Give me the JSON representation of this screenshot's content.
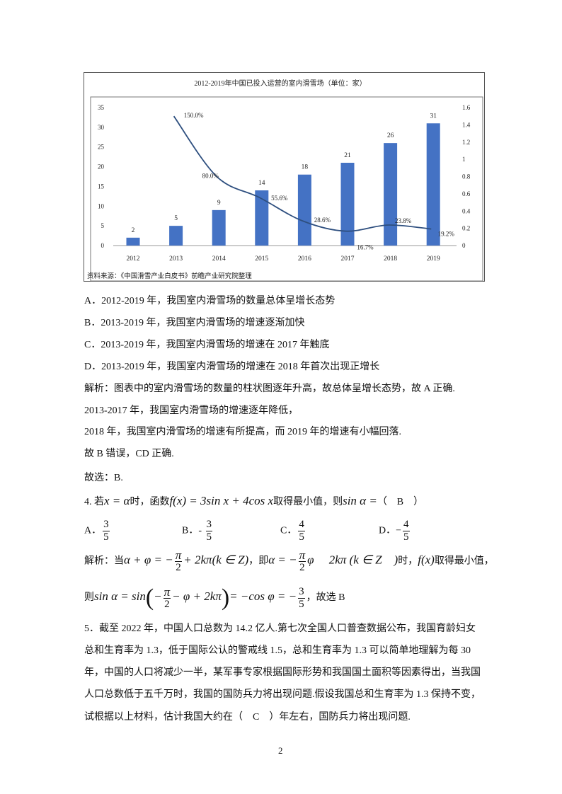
{
  "chart_data": {
    "type": "bar+line",
    "title": "2012-2019年中国已投入运营的室内滑雪场（单位：家）",
    "categories": [
      "2012",
      "2013",
      "2014",
      "2015",
      "2016",
      "2017",
      "2018",
      "2019"
    ],
    "series": [
      {
        "type": "bar",
        "axis": "left",
        "values": [
          2,
          5,
          9,
          14,
          18,
          21,
          26,
          31
        ],
        "labels": [
          "2",
          "5",
          "9",
          "14",
          "18",
          "21",
          "26",
          "31"
        ],
        "color": "#4472c4"
      },
      {
        "type": "line",
        "axis": "right",
        "values": [
          null,
          1.5,
          0.8,
          0.556,
          0.286,
          0.167,
          0.238,
          0.192
        ],
        "labels": [
          "",
          "150.0%",
          "80.0%",
          "55.6%",
          "28.6%",
          "16.7%",
          "23.8%",
          "19.2%"
        ],
        "color": "#2e4f7f"
      }
    ],
    "y_left": {
      "range": [
        0,
        35
      ],
      "ticks": [
        "0",
        "5",
        "10",
        "15",
        "20",
        "25",
        "30",
        "35"
      ]
    },
    "y_right": {
      "range": [
        0,
        1.6
      ],
      "ticks": [
        "0",
        "0.2",
        "0.4",
        "0.6",
        "0.8",
        "1",
        "1.2",
        "1.4",
        "1.6"
      ]
    },
    "grid": false,
    "source": "资料来源：《中国滑雪产业白皮书》前瞻产业研究院整理"
  },
  "q3": {
    "options": [
      "A．2012-2019 年，我国室内滑雪场的数量总体呈增长态势",
      "B．2013-2019 年，我国室内滑雪场的增速逐渐加快",
      "C．2013-2019 年，我国室内滑雪场的增速在 2017 年触底",
      "D．2013-2019 年，我国室内滑雪场的增速在 2018 年首次出现正增长"
    ],
    "analysis": [
      "解析：图表中的室内滑雪场的数量的柱状图逐年升高，故总体呈增长态势，故 A 正确.",
      "2013-2017 年，我国室内滑雪场的增速逐年降低，",
      "2018 年，我国室内滑雪场的增速有所提高，而 2019 年的增速有小幅回落.",
      "故 B 错误，CD 正确.",
      "故选：B."
    ]
  },
  "q4": {
    "stem_pre": "4. 若",
    "x_eq": "x = α",
    "stem_mid": "时，函数",
    "func": "f(x) = 3sin x + 4cos x",
    "stem_post": "取得最小值，则",
    "sin_a": "sin α =",
    "answer": "（　B　）",
    "options": [
      {
        "label": "A．",
        "sign": "",
        "num": "3",
        "den": "5"
      },
      {
        "label": "B．",
        "sign": "- ",
        "num": "3",
        "den": "5"
      },
      {
        "label": "C．",
        "sign": "",
        "num": "4",
        "den": "5"
      },
      {
        "label": "D．",
        "sign": "−",
        "num": "4",
        "den": "5"
      }
    ],
    "a1_pre": "解析：当",
    "a1_m1": "α + φ = −",
    "pi": "π",
    "two": "2",
    "a1_m2": "+ 2kπ(k ∈ Z)",
    "a1_mid": "，即",
    "a1_m3": "α = −",
    "a1_m4": "φ　 2kπ (k ∈ Z　)",
    "a1_post1": "时，",
    "fx": "f(x)",
    "a1_post2": "取得最小值，",
    "a2_pre": "则",
    "a2_m1": "sin α = sin",
    "a2_m2": "−",
    "a2_m3": "− φ + 2kπ",
    "a2_m4": "= −cos φ = −",
    "three": "3",
    "five": "5",
    "a2_post": "，故选 B"
  },
  "q5": {
    "lines": [
      "5．截至 2022 年，中国人口总数为 14.2 亿人.第七次全国人口普查数据公布，我国育龄妇女",
      "总和生育率为 1.3，低于国际公认的警戒线 1.5，总和生育率为 1.3 可以简单地理解为每 30",
      "年，中国的人口将减少一半，某军事专家根据国际形势和我国国土面积等因素得出，当我国",
      "人口总数低于五千万时，我国的国防兵力将出现问题.假设我国总和生育率为 1.3 保持不变，",
      "试根据以上材料，估计我国大约在（　C　）年左右，国防兵力将出现问题."
    ]
  },
  "page_number": "2"
}
